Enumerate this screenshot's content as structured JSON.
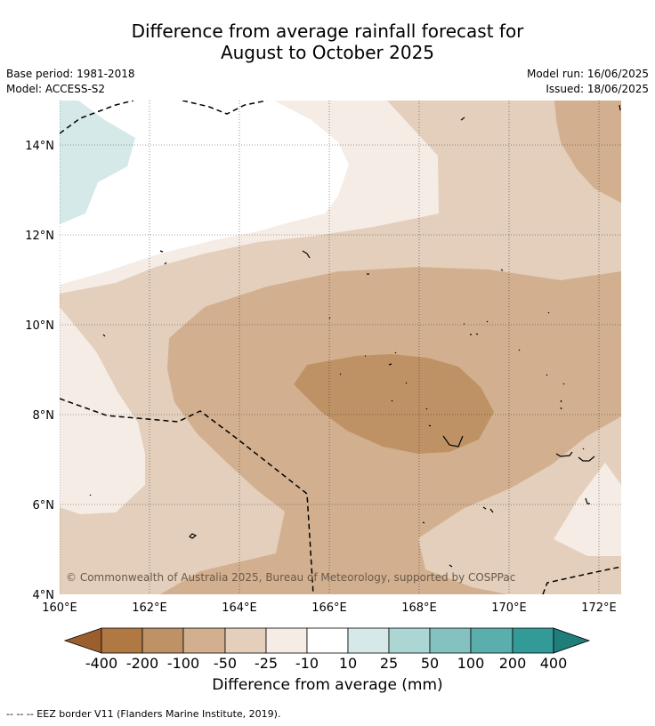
{
  "title": {
    "line1": "Difference from average rainfall forecast for",
    "line2": "August to October 2025"
  },
  "meta": {
    "base_period": "Base period: 1981-2018",
    "model": "Model: ACCESS-S2",
    "model_run": "Model run: 16/06/2025",
    "issued": "Issued: 18/06/2025"
  },
  "map": {
    "lat_labels": [
      "14°N",
      "12°N",
      "10°N",
      "8°N",
      "6°N",
      "4°N"
    ],
    "lon_labels": [
      "160°E",
      "162°E",
      "164°E",
      "166°E",
      "168°E",
      "170°E",
      "172°E"
    ],
    "copyright": "© Commonwealth of Australia 2025, Bureau of Meteorology, supported by COSPPac"
  },
  "colorbar": {
    "title": "Difference from average (mm)",
    "tick_labels": [
      "-400",
      "-200",
      "-100",
      "-50",
      "-25",
      "-10",
      "10",
      "25",
      "50",
      "100",
      "200",
      "400"
    ],
    "colors": [
      "#9a5f2c",
      "#b07842",
      "#bf9266",
      "#d2b08f",
      "#e3cfbc",
      "#f5ece6",
      "#ffffff",
      "#d4e9e8",
      "#acd6d4",
      "#83c2c0",
      "#5aaeac",
      "#329b98",
      "#1f7d7a"
    ]
  },
  "footnote": "--  --  -- EEZ border V11 (Flanders Marine Institute, 2019)."
}
